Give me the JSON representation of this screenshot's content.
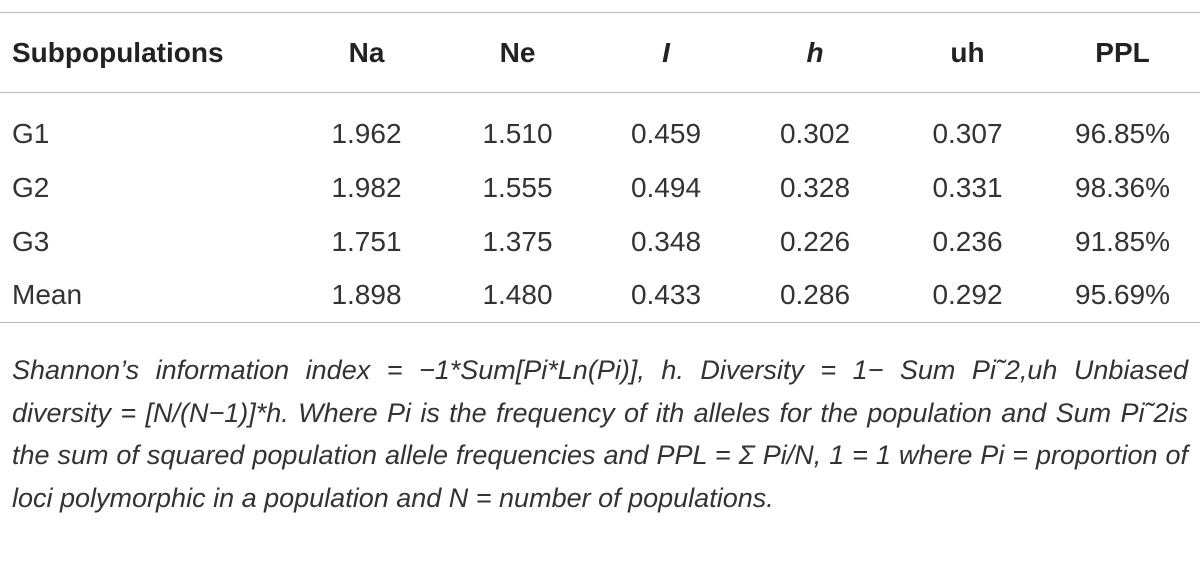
{
  "table": {
    "header": [
      "Subpopulations",
      "Na",
      "Ne",
      "I",
      "h",
      "uh",
      "PPL"
    ],
    "rows": [
      [
        "G1",
        "1.962",
        "1.510",
        "0.459",
        "0.302",
        "0.307",
        "96.85%"
      ],
      [
        "G2",
        "1.982",
        "1.555",
        "0.494",
        "0.328",
        "0.331",
        "98.36%"
      ],
      [
        "G3",
        "1.751",
        "1.375",
        "0.348",
        "0.226",
        "0.236",
        "91.85%"
      ],
      [
        "Mean",
        "1.898",
        "1.480",
        "0.433",
        "0.286",
        "0.292",
        "95.69%"
      ]
    ],
    "footnote": "Shannon’s information index = −1*Sum[Pi*Ln(Pi)], h. Diversity = 1− Sum Pi˜2,uh Unbiased diversity = [N/(N−1)]*h. Where Pi is the frequency of ith alleles for the population and Sum Pi˜2is the sum of squared population allele frequencies and PPL = Σ Pi/N, 1 = 1 where Pi = proportion of loci polymorphic in a population and N = number of populations."
  }
}
